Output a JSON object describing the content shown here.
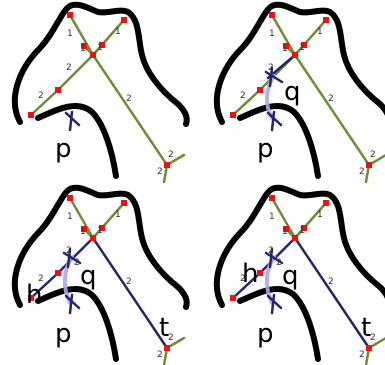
{
  "panels": [
    {
      "id": "top-left",
      "edge_labels": [
        "1",
        "1",
        "1",
        "1",
        "2",
        "2",
        "2",
        "2",
        "2"
      ],
      "point_labels": [
        "p"
      ]
    },
    {
      "id": "top-right",
      "edge_labels": [
        "1",
        "1",
        "1",
        "1",
        "2",
        "2",
        "2",
        "2",
        "2"
      ],
      "point_labels": [
        "p",
        "q"
      ]
    },
    {
      "id": "bottom-left",
      "edge_labels": [
        "1",
        "1",
        "1",
        "1",
        "2",
        "2",
        "2",
        "2",
        "2",
        "2"
      ],
      "point_labels": [
        "p",
        "q",
        "h",
        "t"
      ]
    },
    {
      "id": "bottom-right",
      "edge_labels": [
        "1",
        "1",
        "1",
        "1",
        "2",
        "2",
        "2",
        "2",
        "2",
        "2"
      ],
      "point_labels": [
        "p",
        "q",
        "h",
        "t"
      ]
    }
  ],
  "colors": {
    "outline": "#000000",
    "skeleton": "#6b8e3a",
    "path": "#25256b",
    "highlight": "#a9a9ee",
    "node": "#ee1111"
  }
}
